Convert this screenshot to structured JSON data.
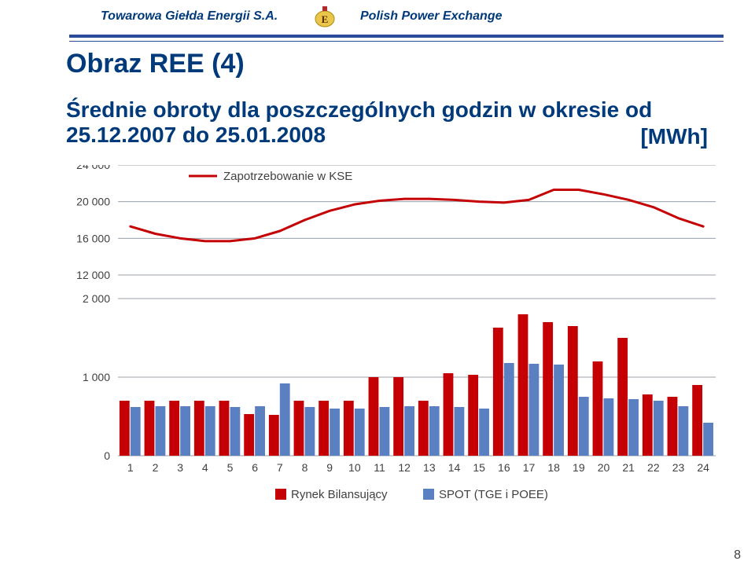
{
  "header": {
    "left": "Towarowa Giełda Energii S.A.",
    "right": "Polish Power Exchange"
  },
  "title": "Obraz REE (4)",
  "subtitle": "Średnie obroty dla poszczególnych godzin w okresie od 25.12.2007 do 25.01.2008",
  "unit": "[MWh]",
  "page_number": "8",
  "colors": {
    "navy": "#003a7a",
    "headerline": "#2a4a9a",
    "grid": "#9aa0a8",
    "red": "#c40004",
    "blue": "#5a80c2",
    "bg": "#ffffff",
    "text": "#404040"
  },
  "upper_chart": {
    "legend_label": "Zapotrzebowanie w KSE",
    "ylim": [
      12000,
      24000
    ],
    "yticks": [
      12000,
      16000,
      20000,
      24000
    ],
    "ytick_labels": [
      "12 000",
      "16 000",
      "20 000",
      "24 000"
    ],
    "x_categories": [
      1,
      2,
      3,
      4,
      5,
      6,
      7,
      8,
      9,
      10,
      11,
      12,
      13,
      14,
      15,
      16,
      17,
      18,
      19,
      20,
      21,
      22,
      23,
      24
    ],
    "series": {
      "color": "#c40004",
      "line_width": 3,
      "values": [
        17300,
        16500,
        16000,
        15700,
        15700,
        16000,
        16800,
        18000,
        19000,
        19700,
        20100,
        20300,
        20300,
        20200,
        20000,
        19900,
        20200,
        21300,
        21300,
        20800,
        20200,
        19400,
        18200,
        17300
      ]
    }
  },
  "lower_chart": {
    "ylim": [
      0,
      2000
    ],
    "yticks": [
      0,
      1000,
      2000
    ],
    "ytick_labels": [
      "0",
      "1 000",
      "2 000"
    ],
    "x_categories": [
      1,
      2,
      3,
      4,
      5,
      6,
      7,
      8,
      9,
      10,
      11,
      12,
      13,
      14,
      15,
      16,
      17,
      18,
      19,
      20,
      21,
      22,
      23,
      24
    ],
    "bar_gap": 0.12,
    "series": [
      {
        "label": "Rynek Bilansujący",
        "color": "#c40004",
        "values": [
          700,
          700,
          700,
          700,
          700,
          530,
          520,
          700,
          700,
          700,
          1000,
          1000,
          700,
          1050,
          1030,
          1630,
          1800,
          1700,
          1650,
          1200,
          1500,
          780,
          750,
          900
        ]
      },
      {
        "label": "SPOT (TGE i POEE)",
        "color": "#5a80c2",
        "values": [
          620,
          630,
          630,
          630,
          620,
          630,
          920,
          620,
          600,
          600,
          620,
          630,
          630,
          620,
          600,
          1180,
          1170,
          1160,
          750,
          730,
          720,
          700,
          630,
          420
        ]
      }
    ]
  },
  "typography": {
    "title_fontsize": 34,
    "subtitle_fontsize": 28,
    "tick_fontsize": 14,
    "legend_fontsize": 15,
    "header_fontsize": 16
  }
}
